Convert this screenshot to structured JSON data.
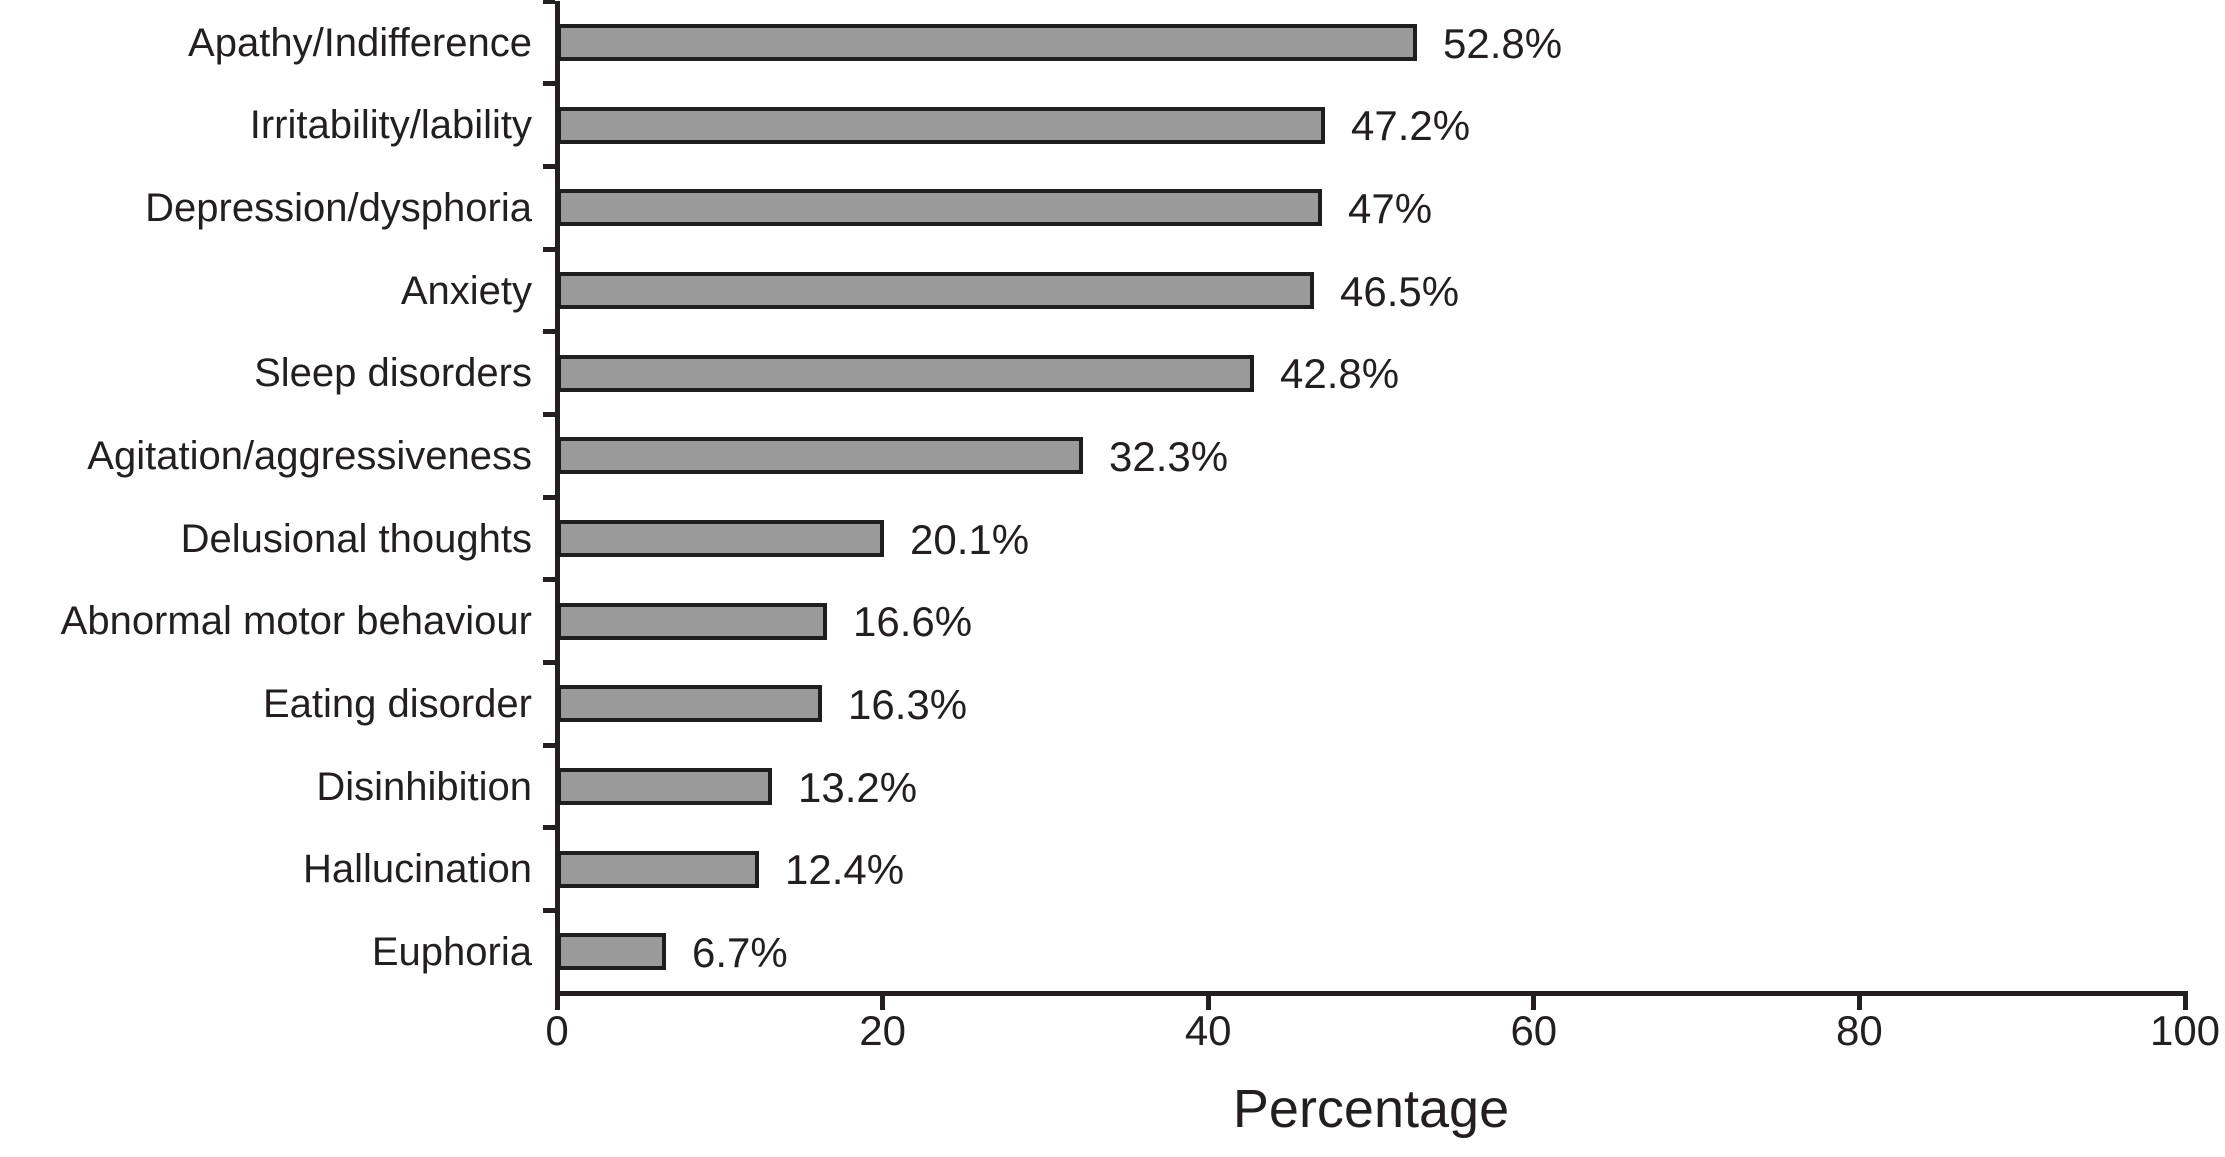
{
  "chart_data": {
    "type": "bar",
    "orientation": "horizontal",
    "title": "",
    "xlabel": "Percentage",
    "ylabel": "",
    "categories": [
      "Apathy/Indifference",
      "Irritability/lability",
      "Depression/dysphoria",
      "Anxiety",
      "Sleep disorders",
      "Agitation/aggressiveness",
      "Delusional thoughts",
      "Abnormal motor behaviour",
      "Eating disorder",
      "Disinhibition",
      "Hallucination",
      "Euphoria"
    ],
    "values": [
      52.8,
      47.2,
      47,
      46.5,
      42.8,
      32.3,
      20.1,
      16.6,
      16.3,
      13.2,
      12.4,
      6.7
    ],
    "value_labels": [
      "52.8%",
      "47.2%",
      "47%",
      "46.5%",
      "42.8%",
      "32.3%",
      "20.1%",
      "16.6%",
      "16.3%",
      "13.2%",
      "12.4%",
      "6.7%"
    ],
    "xlim": [
      0,
      100
    ],
    "x_ticks": [
      0,
      20,
      40,
      60,
      80,
      100
    ],
    "grid": false,
    "legend": null,
    "bar_fill_color": "#9a9a9a",
    "bar_border_color": "#1e1e1e",
    "axis_color": "#231f20",
    "text_color": "#231f20",
    "background_color": "#ffffff"
  }
}
